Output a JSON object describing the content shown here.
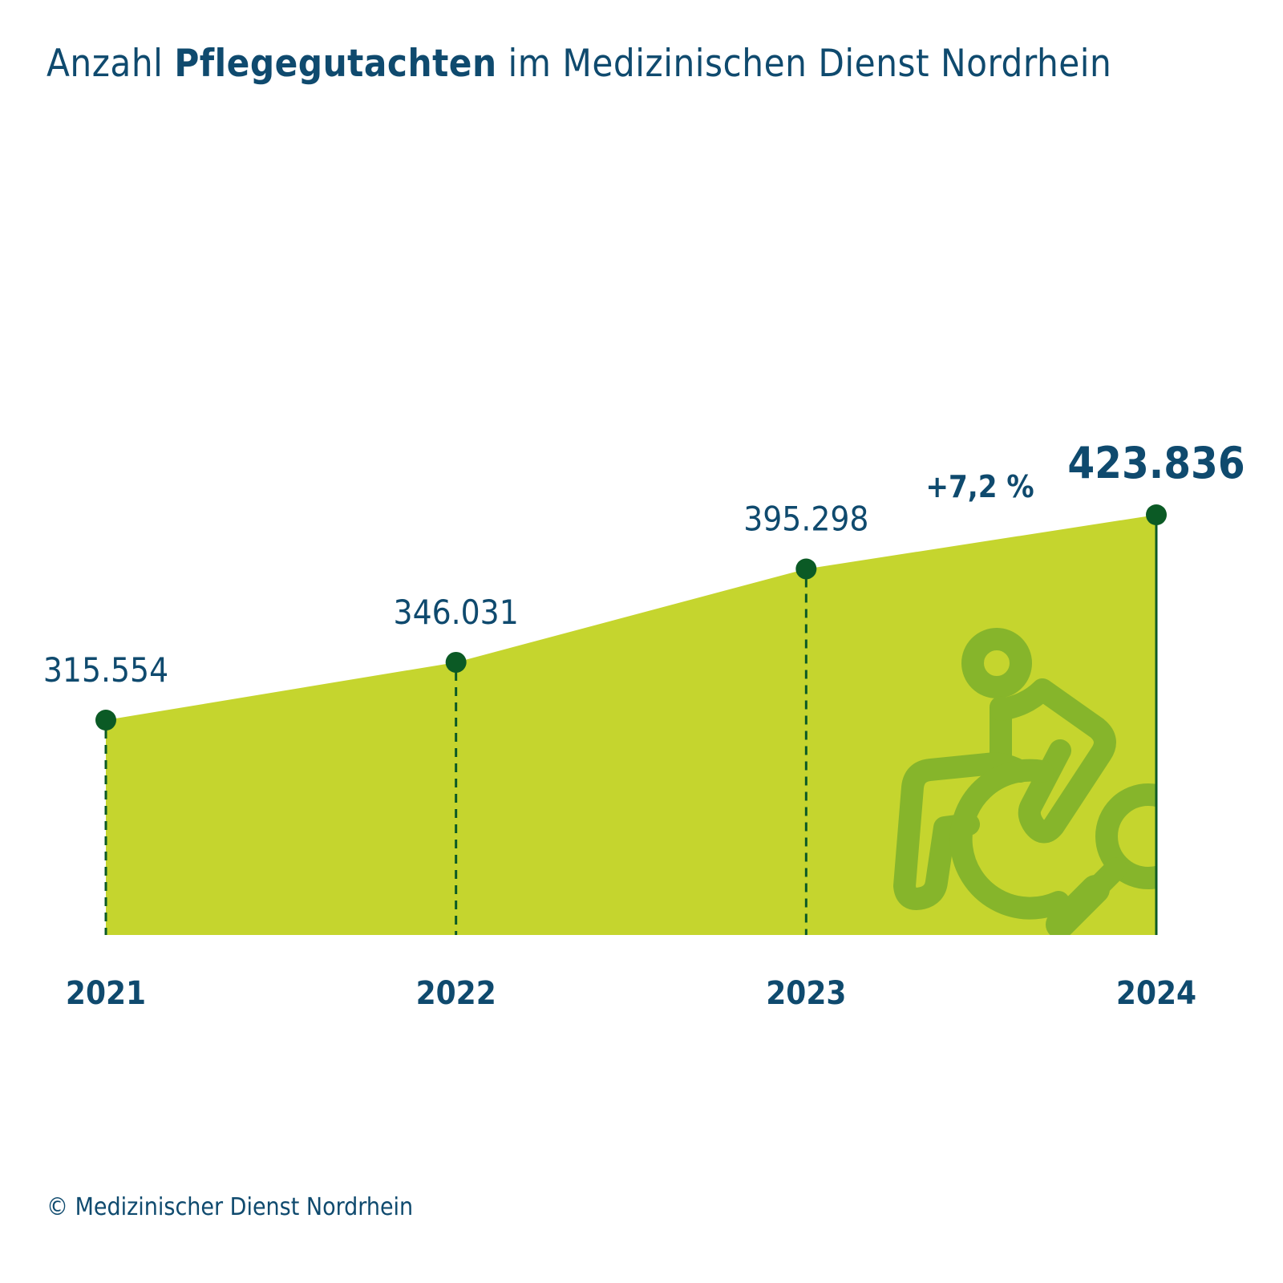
{
  "title": {
    "prefix": "Anzahl ",
    "bold": "Pflegegutachten",
    "suffix": " im Medizinischen Dienst Nordrhein"
  },
  "footer": "© Medizinischer Dienst Nordrhein",
  "colors": {
    "text": "#0f4a6e",
    "area": "#c5d52e",
    "marker": "#0b5a25",
    "icon": "#86b52b"
  },
  "icon": "wheelchair-magnifier-icon",
  "chart_data": {
    "type": "area",
    "x": [
      "2021",
      "2022",
      "2023",
      "2024"
    ],
    "values": [
      315554,
      346031,
      395298,
      423836
    ],
    "value_labels": [
      "315.554",
      "346.031",
      "395.298",
      "423.836"
    ],
    "annotation": "+7,2 %",
    "grid": false
  }
}
